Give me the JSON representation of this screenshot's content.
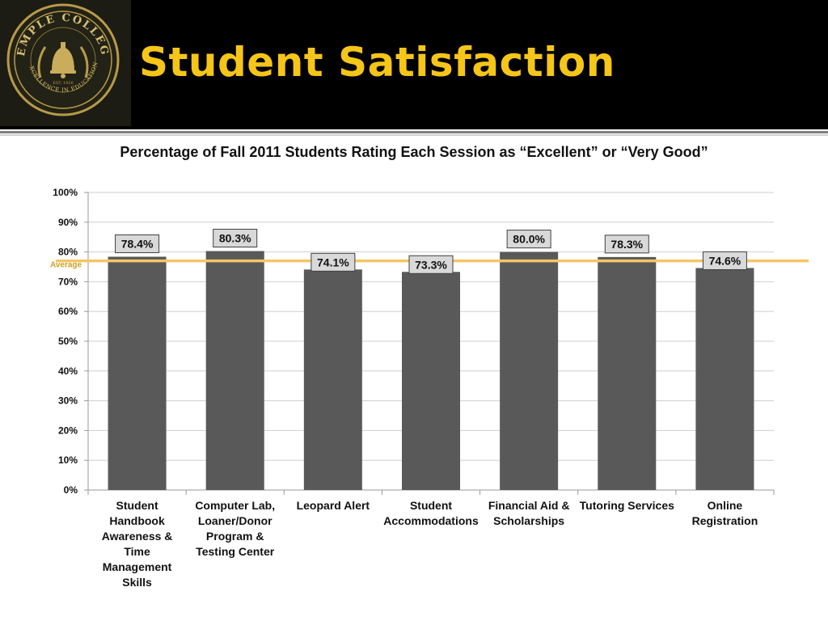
{
  "header": {
    "title": "Student Satisfaction",
    "logo": {
      "icon": "temple-college-seal",
      "top_text": "TEMPLE COLLEGE",
      "bottom_text": "EXCELLENCE IN EDUCATION",
      "center_text": "EST. 1926"
    }
  },
  "colors": {
    "header_bg": "#000000",
    "title": "#f5c518",
    "bar": "#595959",
    "average_line": "#f6c664",
    "average_label": "#c9a227"
  },
  "chart_data": {
    "type": "bar",
    "title": "Percentage of Fall 2011 Students Rating Each Session as “Excellent” or “Very Good”",
    "xlabel": "",
    "ylabel": "",
    "categories": [
      "Student Handbook Awareness & Time Management Skills",
      "Computer Lab, Loaner/Donor Program & Testing Center",
      "Leopard Alert",
      "Student Accommodations",
      "Financial Aid & Scholarships",
      "Tutoring Services",
      "Online Registration"
    ],
    "values": [
      78.4,
      80.3,
      74.1,
      73.3,
      80.0,
      78.3,
      74.6
    ],
    "value_labels": [
      "78.4%",
      "80.3%",
      "74.1%",
      "73.3%",
      "80.0%",
      "78.3%",
      "74.6%"
    ],
    "ylim": [
      0,
      100
    ],
    "yticks": [
      0,
      10,
      20,
      30,
      40,
      50,
      60,
      70,
      80,
      90,
      100
    ],
    "ytick_labels": [
      "0%",
      "10%",
      "20%",
      "30%",
      "40%",
      "50%",
      "60%",
      "70%",
      "80%",
      "90%",
      "100%"
    ],
    "average": {
      "value": 77.0,
      "label": "Average"
    },
    "grid": true,
    "legend": "none"
  }
}
